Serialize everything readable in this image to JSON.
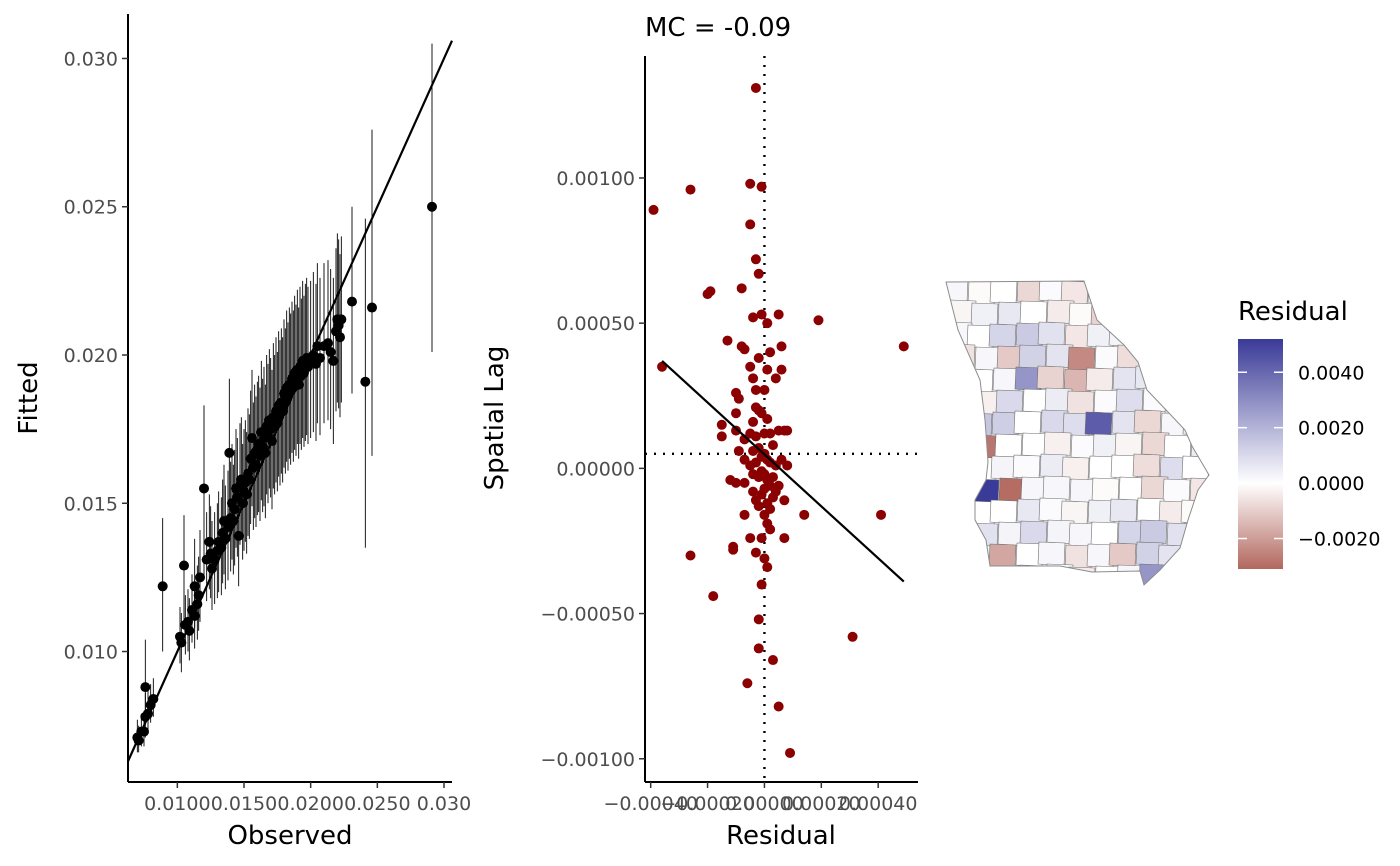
{
  "chart_data": [
    {
      "type": "scatter",
      "xlabel": "Observed",
      "ylabel": "Fitted",
      "x_ticks": [
        "0.0100",
        "0.0150",
        "0.0200",
        "0.0250",
        "0.030"
      ],
      "y_ticks": [
        "0.010",
        "0.015",
        "0.020",
        "0.025",
        "0.030"
      ],
      "xlim": [
        0.0063,
        0.0306
      ],
      "ylim": [
        0.0056,
        0.0315
      ],
      "grid": false,
      "reference_line": {
        "slope": 1,
        "intercept": 0
      },
      "error_bars": "vertical interval per point",
      "points": [
        [
          0.007,
          0.0071,
          0.0066,
          0.0077
        ],
        [
          0.0071,
          0.007,
          0.0066,
          0.0075
        ],
        [
          0.0073,
          0.0073,
          0.0068,
          0.0079
        ],
        [
          0.0075,
          0.0073,
          0.0068,
          0.008
        ],
        [
          0.0076,
          0.0078,
          0.0071,
          0.0086
        ],
        [
          0.0076,
          0.0088,
          0.008,
          0.0104
        ],
        [
          0.0078,
          0.0079,
          0.0073,
          0.0087
        ],
        [
          0.008,
          0.0082,
          0.0076,
          0.0089
        ],
        [
          0.0082,
          0.0084,
          0.0078,
          0.0091
        ],
        [
          0.0089,
          0.0122,
          0.01,
          0.0145
        ],
        [
          0.0102,
          0.0105,
          0.0096,
          0.0115
        ],
        [
          0.0103,
          0.0103,
          0.0093,
          0.0113
        ],
        [
          0.0105,
          0.0129,
          0.011,
          0.0146
        ],
        [
          0.0106,
          0.0109,
          0.0099,
          0.0119
        ],
        [
          0.0108,
          0.011,
          0.01,
          0.0121
        ],
        [
          0.0109,
          0.0107,
          0.0097,
          0.0118
        ],
        [
          0.0111,
          0.0114,
          0.0103,
          0.0126
        ],
        [
          0.0113,
          0.0112,
          0.0101,
          0.0124
        ],
        [
          0.0113,
          0.0122,
          0.0108,
          0.0138
        ],
        [
          0.0115,
          0.0116,
          0.0104,
          0.0129
        ],
        [
          0.0116,
          0.0119,
          0.0107,
          0.0132
        ],
        [
          0.0117,
          0.0125,
          0.011,
          0.0141
        ],
        [
          0.012,
          0.0155,
          0.0125,
          0.0183
        ],
        [
          0.0122,
          0.0131,
          0.0117,
          0.0147
        ],
        [
          0.0124,
          0.0137,
          0.0121,
          0.0153
        ],
        [
          0.0125,
          0.0133,
          0.0118,
          0.0149
        ],
        [
          0.0126,
          0.0128,
          0.0114,
          0.0144
        ],
        [
          0.0128,
          0.0131,
          0.0116,
          0.0147
        ],
        [
          0.013,
          0.0134,
          0.0118,
          0.015
        ],
        [
          0.0131,
          0.0137,
          0.012,
          0.0154
        ],
        [
          0.0133,
          0.0135,
          0.0119,
          0.0152
        ],
        [
          0.0134,
          0.014,
          0.0123,
          0.0158
        ],
        [
          0.0135,
          0.0144,
          0.0126,
          0.0163
        ],
        [
          0.0136,
          0.0138,
          0.0121,
          0.0156
        ],
        [
          0.0138,
          0.0142,
          0.0124,
          0.0161
        ],
        [
          0.0139,
          0.0167,
          0.014,
          0.0192
        ],
        [
          0.014,
          0.0145,
          0.0127,
          0.0164
        ],
        [
          0.0141,
          0.015,
          0.0131,
          0.017
        ],
        [
          0.0142,
          0.0144,
          0.0126,
          0.0163
        ],
        [
          0.0143,
          0.0148,
          0.0129,
          0.0168
        ],
        [
          0.0144,
          0.0155,
          0.0135,
          0.0175
        ],
        [
          0.0145,
          0.0152,
          0.0132,
          0.0172
        ],
        [
          0.0146,
          0.0139,
          0.0122,
          0.0157
        ],
        [
          0.0147,
          0.0156,
          0.0136,
          0.0177
        ],
        [
          0.0148,
          0.0158,
          0.0138,
          0.0179
        ],
        [
          0.0149,
          0.015,
          0.0131,
          0.017
        ],
        [
          0.015,
          0.0154,
          0.0134,
          0.0175
        ],
        [
          0.0151,
          0.0157,
          0.0137,
          0.0178
        ],
        [
          0.0152,
          0.0153,
          0.0133,
          0.0174
        ],
        [
          0.0153,
          0.016,
          0.0139,
          0.0182
        ],
        [
          0.0154,
          0.0158,
          0.0138,
          0.018
        ],
        [
          0.0155,
          0.0165,
          0.0143,
          0.0188
        ],
        [
          0.0156,
          0.0172,
          0.0149,
          0.0195
        ],
        [
          0.0157,
          0.0162,
          0.0141,
          0.0184
        ],
        [
          0.0158,
          0.0167,
          0.0145,
          0.019
        ],
        [
          0.0159,
          0.0163,
          0.0142,
          0.0186
        ],
        [
          0.016,
          0.0168,
          0.0146,
          0.0191
        ],
        [
          0.0161,
          0.017,
          0.0147,
          0.0193
        ],
        [
          0.0162,
          0.0166,
          0.0144,
          0.0189
        ],
        [
          0.0163,
          0.0174,
          0.0151,
          0.0198
        ],
        [
          0.0164,
          0.0169,
          0.0147,
          0.0192
        ],
        [
          0.0165,
          0.0172,
          0.0149,
          0.0196
        ],
        [
          0.0166,
          0.0167,
          0.0145,
          0.019
        ],
        [
          0.0167,
          0.0176,
          0.0153,
          0.02
        ],
        [
          0.0168,
          0.0173,
          0.015,
          0.0197
        ],
        [
          0.0169,
          0.0178,
          0.0155,
          0.0202
        ],
        [
          0.017,
          0.0175,
          0.0152,
          0.0199
        ],
        [
          0.0171,
          0.0171,
          0.0148,
          0.0195
        ],
        [
          0.0172,
          0.0179,
          0.0155,
          0.0204
        ],
        [
          0.0173,
          0.0176,
          0.0153,
          0.02
        ],
        [
          0.0174,
          0.0181,
          0.0157,
          0.0206
        ],
        [
          0.0175,
          0.0177,
          0.0154,
          0.0201
        ],
        [
          0.0176,
          0.0183,
          0.0159,
          0.0208
        ],
        [
          0.0177,
          0.018,
          0.0156,
          0.0205
        ],
        [
          0.0178,
          0.0184,
          0.016,
          0.0209
        ],
        [
          0.0179,
          0.0181,
          0.0157,
          0.0206
        ],
        [
          0.018,
          0.0187,
          0.0162,
          0.0212
        ],
        [
          0.0181,
          0.0184,
          0.016,
          0.0209
        ],
        [
          0.0182,
          0.0189,
          0.0164,
          0.0215
        ],
        [
          0.0183,
          0.0186,
          0.0161,
          0.0211
        ],
        [
          0.0184,
          0.019,
          0.0165,
          0.0216
        ],
        [
          0.0185,
          0.0188,
          0.0163,
          0.0214
        ],
        [
          0.0186,
          0.0192,
          0.0167,
          0.0218
        ],
        [
          0.0187,
          0.0189,
          0.0164,
          0.0215
        ],
        [
          0.0188,
          0.0194,
          0.0168,
          0.022
        ],
        [
          0.0189,
          0.0191,
          0.0166,
          0.0217
        ],
        [
          0.019,
          0.0195,
          0.017,
          0.0222
        ],
        [
          0.0191,
          0.019,
          0.0165,
          0.0216
        ],
        [
          0.0192,
          0.0196,
          0.017,
          0.0223
        ],
        [
          0.0193,
          0.0193,
          0.0168,
          0.0219
        ],
        [
          0.0194,
          0.0198,
          0.0172,
          0.0225
        ],
        [
          0.0195,
          0.0194,
          0.0169,
          0.022
        ],
        [
          0.0196,
          0.0197,
          0.0171,
          0.0224
        ],
        [
          0.0197,
          0.0199,
          0.0173,
          0.0226
        ],
        [
          0.0198,
          0.0196,
          0.017,
          0.0223
        ],
        [
          0.02,
          0.0198,
          0.0172,
          0.0225
        ],
        [
          0.0202,
          0.02,
          0.0174,
          0.0228
        ],
        [
          0.0204,
          0.0197,
          0.0171,
          0.0224
        ],
        [
          0.0205,
          0.0203,
          0.0177,
          0.0231
        ],
        [
          0.0207,
          0.0199,
          0.0173,
          0.0226
        ],
        [
          0.021,
          0.0203,
          0.0177,
          0.0231
        ],
        [
          0.0213,
          0.0204,
          0.0178,
          0.0232
        ],
        [
          0.0215,
          0.0201,
          0.0175,
          0.0229
        ],
        [
          0.0217,
          0.0198,
          0.017,
          0.0226
        ],
        [
          0.0219,
          0.0208,
          0.0181,
          0.0236
        ],
        [
          0.022,
          0.0212,
          0.0184,
          0.0241
        ],
        [
          0.0221,
          0.021,
          0.0182,
          0.0239
        ],
        [
          0.0222,
          0.0206,
          0.0179,
          0.0234
        ],
        [
          0.0223,
          0.0212,
          0.0184,
          0.024
        ],
        [
          0.0231,
          0.0218,
          0.0187,
          0.025
        ],
        [
          0.0241,
          0.0191,
          0.0135,
          0.0246
        ],
        [
          0.0246,
          0.0216,
          0.0166,
          0.0276
        ],
        [
          0.0291,
          0.025,
          0.0201,
          0.0305
        ]
      ]
    },
    {
      "type": "scatter",
      "title": "MC = -0.09",
      "xlabel": "Residual",
      "ylabel": "Spatial Lag",
      "x_ticks": [
        "−0.00040",
        "−0.00020",
        "0.00000",
        "0.00020",
        "0.00040"
      ],
      "y_ticks": [
        "−0.00100",
        "−0.00050",
        "0.00000",
        "0.00050",
        "0.00100"
      ],
      "xlim": [
        -0.00042,
        0.00054
      ],
      "ylim": [
        -0.00108,
        0.00142
      ],
      "grid": false,
      "point_color": "#8B0000",
      "vline_x": 0.0,
      "hline_y": 5e-05,
      "regression_line": {
        "x": [
          -0.00036,
          0.00049
        ],
        "y": [
          0.00037,
          -0.00039
        ]
      },
      "points": [
        [
          -0.00039,
          0.00089
        ],
        [
          -0.00036,
          0.00035
        ],
        [
          -0.00026,
          0.00096
        ],
        [
          -0.00026,
          -0.0003
        ],
        [
          -0.0002,
          0.0006
        ],
        [
          -0.00019,
          0.00061
        ],
        [
          -0.00018,
          -0.00044
        ],
        [
          -0.00015,
          0.00015
        ],
        [
          -0.00015,
          0.00011
        ],
        [
          -0.00013,
          0.00044
        ],
        [
          -0.00012,
          -4e-05
        ],
        [
          -0.00011,
          -0.00027
        ],
        [
          -0.00011,
          -0.00028
        ],
        [
          -0.0001,
          0.00026
        ],
        [
          -0.0001,
          0.00019
        ],
        [
          -0.0001,
          0.00013
        ],
        [
          -0.0001,
          -5e-05
        ],
        [
          -9e-05,
          0.00024
        ],
        [
          -9e-05,
          6e-05
        ],
        [
          -8e-05,
          0.00062
        ],
        [
          -8e-05,
          0.00042
        ],
        [
          -7e-05,
          0.00041
        ],
        [
          -7e-05,
          0.0001
        ],
        [
          -7e-05,
          3e-05
        ],
        [
          -7e-05,
          -5e-05
        ],
        [
          -7e-05,
          -0.00016
        ],
        [
          -6e-05,
          -0.00074
        ],
        [
          -5e-05,
          0.00098
        ],
        [
          -5e-05,
          0.00084
        ],
        [
          -5e-05,
          0.00035
        ],
        [
          -5e-05,
          0.00012
        ],
        [
          -5e-05,
          1e-05
        ],
        [
          -5e-05,
          -0.00024
        ],
        [
          -4e-05,
          0.00052
        ],
        [
          -4e-05,
          0.00031
        ],
        [
          -4e-05,
          0.00016
        ],
        [
          -4e-05,
          6e-05
        ],
        [
          -4e-05,
          -2e-05
        ],
        [
          -4e-05,
          -8e-05
        ],
        [
          -3e-05,
          0.00131
        ],
        [
          -3e-05,
          0.00072
        ],
        [
          -3e-05,
          0.00027
        ],
        [
          -3e-05,
          0.00021
        ],
        [
          -3e-05,
          0.00011
        ],
        [
          -3e-05,
          2e-05
        ],
        [
          -3e-05,
          -0.00011
        ],
        [
          -3e-05,
          -0.00029
        ],
        [
          -2e-05,
          0.00067
        ],
        [
          -2e-05,
          0.00038
        ],
        [
          -2e-05,
          0.0002
        ],
        [
          -2e-05,
          7e-05
        ],
        [
          -2e-05,
          -3e-05
        ],
        [
          -2e-05,
          -0.00013
        ],
        [
          -2e-05,
          -0.00052
        ],
        [
          -2e-05,
          -0.00062
        ],
        [
          -1e-05,
          0.00097
        ],
        [
          -1e-05,
          0.00053
        ],
        [
          -1e-05,
          0.00019
        ],
        [
          -1e-05,
          4e-05
        ],
        [
          -1e-05,
          -1e-05
        ],
        [
          -1e-05,
          -9e-05
        ],
        [
          -1e-05,
          -0.0004
        ],
        [
          -1e-05,
          -0.00024
        ],
        [
          0.0,
          0.00027
        ],
        [
          0.0,
          0.00012
        ],
        [
          0.0,
          5e-05
        ],
        [
          0.0,
          -2e-05
        ],
        [
          0.0,
          -7e-05
        ],
        [
          0.0,
          -0.00016
        ],
        [
          0.0,
          -0.00031
        ],
        [
          1e-05,
          0.0005
        ],
        [
          1e-05,
          0.00034
        ],
        [
          1e-05,
          0.00017
        ],
        [
          1e-05,
          3e-05
        ],
        [
          1e-05,
          -4e-05
        ],
        [
          1e-05,
          -0.00012
        ],
        [
          1e-05,
          -0.00019
        ],
        [
          1e-05,
          -0.00034
        ],
        [
          2e-05,
          0.0004
        ],
        [
          2e-05,
          0.00012
        ],
        [
          2e-05,
          2e-05
        ],
        [
          2e-05,
          -6e-05
        ],
        [
          2e-05,
          -0.00014
        ],
        [
          2e-05,
          -0.00021
        ],
        [
          3e-05,
          8e-05
        ],
        [
          3e-05,
          -3e-05
        ],
        [
          3e-05,
          -0.0001
        ],
        [
          3e-05,
          -0.00066
        ],
        [
          4e-05,
          0.00031
        ],
        [
          4e-05,
          1e-05
        ],
        [
          4e-05,
          -8e-05
        ],
        [
          5e-05,
          0.00053
        ],
        [
          5e-05,
          0.00013
        ],
        [
          5e-05,
          -6e-05
        ],
        [
          5e-05,
          -0.00082
        ],
        [
          6e-05,
          0.00042
        ],
        [
          6e-05,
          0.00034
        ],
        [
          6e-05,
          3e-05
        ],
        [
          7e-05,
          0.00013
        ],
        [
          7e-05,
          -0.00011
        ],
        [
          7e-05,
          -0.00024
        ],
        [
          8e-05,
          1e-05
        ],
        [
          8e-05,
          0.00013
        ],
        [
          9e-05,
          -0.00098
        ],
        [
          0.00014,
          -0.00016
        ],
        [
          0.00019,
          0.00051
        ],
        [
          0.00031,
          -0.00058
        ],
        [
          0.00041,
          -0.00016
        ],
        [
          0.00049,
          0.00042
        ]
      ]
    },
    {
      "type": "choropleth",
      "legend_title": "Residual",
      "legend_ticks": [
        "0.0040",
        "0.0020",
        "0.0000",
        "−0.0020"
      ],
      "legend_range": [
        -0.0031,
        0.0052
      ],
      "colors": {
        "negative": "#B2675E",
        "zero": "#FFFFFF",
        "positive": "#3A3A98"
      },
      "region_values": [
        0.0002,
        -0.0001,
        0.0,
        -0.0008,
        0.0001,
        -0.0005,
        0.0003,
        0.0,
        0.0,
        0.0006,
        0.0001,
        -0.0002,
        0.0004,
        0.0006,
        0.0,
        -0.0004,
        -0.0001,
        -0.0009,
        0.0008,
        0.0003,
        0.001,
        0.0003,
        0.0002,
        0.0,
        0.0011,
        0.0014,
        0.0008,
        -0.0005,
        0.0004,
        0.0003,
        -0.0018,
        0.0,
        0.0002,
        -0.0006,
        0.0002,
        -0.0011,
        0.0012,
        0.0007,
        -0.0024,
        0.0001,
        -0.0007,
        0.0006,
        -0.0003,
        0.0001,
        -0.0004,
        0.0,
        0.0002,
        0.0028,
        -0.0009,
        -0.0015,
        -0.0004,
        0.0007,
        0.0006,
        0.0002,
        0.0045,
        -0.0007,
        -0.0003,
        0.001,
        0.0,
        0.0005,
        -0.0006,
        0.0001,
        0.0009,
        0.0001,
        -0.0005,
        0.0002,
        0.0003,
        0.0015,
        0.0013,
        0.0,
        0.001,
        0.0009,
        0.0043,
        0.0007,
        -0.0008,
        0.0002,
        -0.0004,
        0.0001,
        -0.0028,
        0.0,
        0.0,
        -0.0003,
        0.0001,
        0.0004,
        -0.0002,
        -0.0008,
        0.0,
        0.0005,
        0.0003,
        0.0,
        0.0003,
        0.0001,
        0.0005,
        -0.0003,
        0.0,
        0.0,
        -0.0007,
        0.0009,
        0.0,
        -0.0013,
        0.0052,
        -0.003,
        0.0002,
        0.0002
      ]
    }
  ]
}
